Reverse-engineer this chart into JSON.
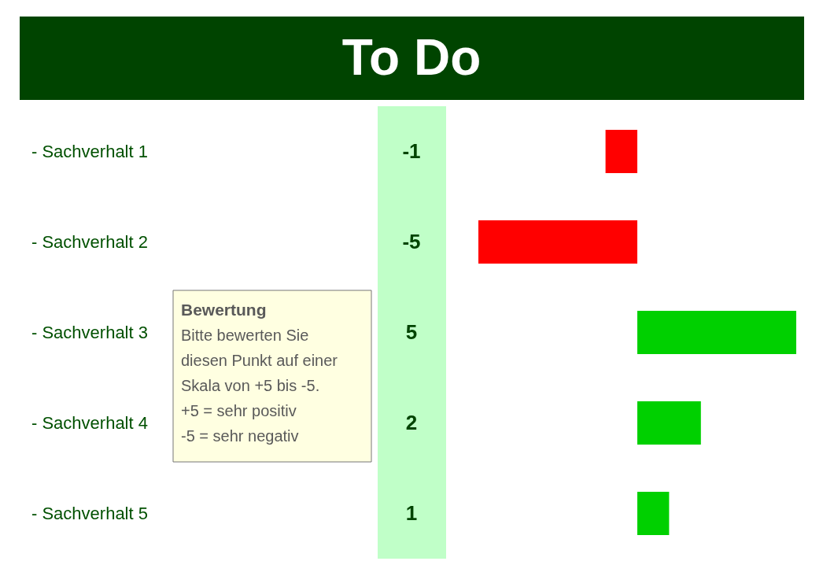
{
  "chart_data": {
    "type": "bar",
    "title": "To Do",
    "orientation": "horizontal",
    "categories": [
      "- Sachverhalt 1",
      "- Sachverhalt 2",
      "- Sachverhalt 3",
      "- Sachverhalt 4",
      "- Sachverhalt 5"
    ],
    "values": [
      -1,
      -5,
      5,
      2,
      1
    ],
    "colors": [
      "#ff0000",
      "#ff0000",
      "#00d000",
      "#00d000",
      "#00d000"
    ],
    "data_labels": true,
    "annotations": [
      "Bewertung",
      "Bitte bewerten Sie diesen Punkt auf einer Skala von +5 bis -5.",
      "+5 = sehr positiv",
      "-5 = sehr negativ"
    ]
  }
}
